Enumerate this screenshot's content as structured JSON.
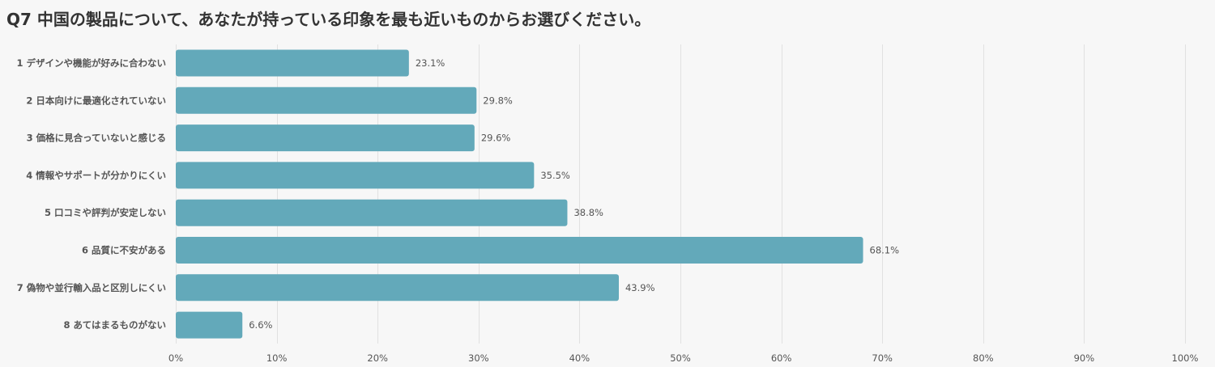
{
  "chart_data": {
    "type": "bar",
    "orientation": "horizontal",
    "title": "Q7 中国の製品について、あなたが持っている印象を最も近いものからお選びください。",
    "categories": [
      "1 デザインや機能が好みに合わない",
      "2 日本向けに最適化されていない",
      "3 価格に見合っていないと感じる",
      "4 情報やサポートが分かりにくい",
      "5 口コミや評判が安定しない",
      "6 品質に不安がある",
      "7 偽物や並行輸入品と区別しにくい",
      "8 あてはまるものがない"
    ],
    "values": [
      23.1,
      29.8,
      29.6,
      35.5,
      38.8,
      68.1,
      43.9,
      6.6
    ],
    "value_labels": [
      "23.1%",
      "29.8%",
      "29.6%",
      "35.5%",
      "38.8%",
      "68.1%",
      "43.9%",
      "6.6%"
    ],
    "xlim": [
      0,
      100
    ],
    "xticks": [
      0,
      10,
      20,
      30,
      40,
      50,
      60,
      70,
      80,
      90,
      100
    ],
    "xtick_labels": [
      "0%",
      "10%",
      "20%",
      "30%",
      "40%",
      "50%",
      "60%",
      "70%",
      "80%",
      "90%",
      "100%"
    ],
    "xlabel": "",
    "ylabel": "",
    "grid": true,
    "bar_color": "#63a9ba",
    "grid_color": "#e1e1e1",
    "background": "#f7f7f7"
  }
}
